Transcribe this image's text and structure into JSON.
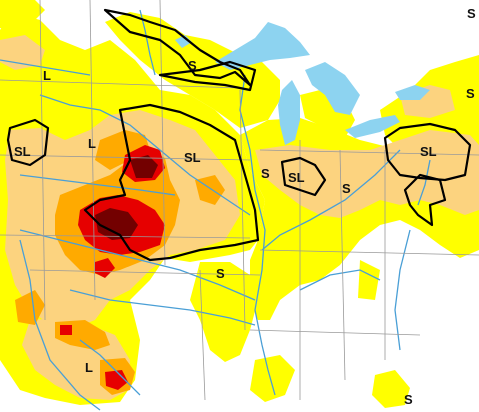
{
  "map": {
    "colors": {
      "background": "#ffffff",
      "lakes": "#8dd3f0",
      "rivers": "#4a9fd6",
      "state_lines": "#9a9a9a",
      "abnormally_dry": "#ffff00",
      "moderate_drought": "#fcd37f",
      "severe_drought": "#ffaa00",
      "extreme_drought": "#e60000",
      "exceptional_drought": "#730000",
      "impact_lines": "#000000"
    },
    "labels": [
      {
        "text": "L"
      },
      {
        "text": "S"
      },
      {
        "text": "SL"
      },
      {
        "text": "L"
      },
      {
        "text": "SL"
      },
      {
        "text": "S"
      },
      {
        "text": "SL"
      },
      {
        "text": "S"
      },
      {
        "text": "SL"
      },
      {
        "text": "S"
      },
      {
        "text": "L"
      },
      {
        "text": "S"
      },
      {
        "text": "S"
      },
      {
        "text": "S"
      }
    ]
  }
}
